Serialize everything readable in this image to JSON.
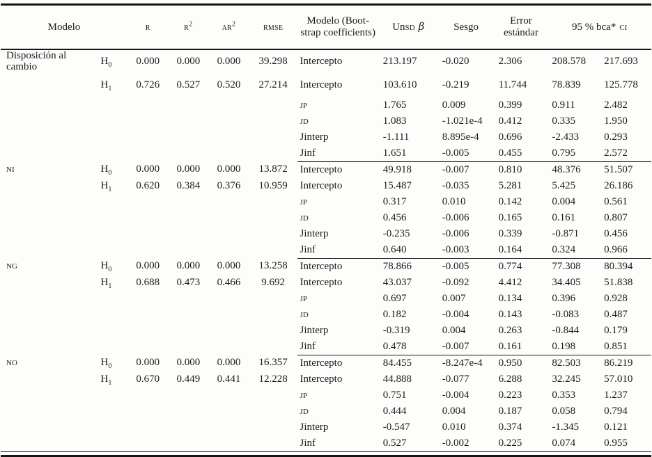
{
  "table": {
    "header": {
      "modelo": "Modelo",
      "r": "R",
      "r2_base": "R",
      "ar2_base": "AR",
      "sup2": "2",
      "rmse": "RMSE",
      "bootstrap": "Modelo (Boot­strap coeffi­cients)",
      "unsd_prefix": "Un",
      "unsd_small": "SD",
      "unsd_beta": "β",
      "sesgo": "Sesgo",
      "error": "Error estándar",
      "ci_prefix": "95 % bca*",
      "ci_small": "CI"
    },
    "blocks": [
      {
        "label": "Disposición al cambio",
        "label_sc": false,
        "rows": [
          {
            "h_base": "H",
            "h_sub": "0",
            "r": "0.000",
            "r2": "0.000",
            "ar2": "0.000",
            "rmse": "39.298",
            "name": "Intercepto",
            "name_sc": false,
            "unsd": "213.197",
            "sesgo": "-0.020",
            "se": "2.306",
            "ci_lo": "208.578",
            "ci_hi": "217.693"
          },
          {
            "h_base": "H",
            "h_sub": "1",
            "r": "0.726",
            "r2": "0.527",
            "ar2": "0.520",
            "rmse": "27.214",
            "name": "Intercepto",
            "name_sc": false,
            "unsd": "103.610",
            "sesgo": "-0.219",
            "se": "11.744",
            "ci_lo": "78.839",
            "ci_hi": "125.778"
          },
          {
            "name": "JP",
            "name_sc": true,
            "unsd": "1.765",
            "sesgo": "0.009",
            "se": "0.399",
            "ci_lo": "0.911",
            "ci_hi": "2.482"
          },
          {
            "name": "JD",
            "name_sc": true,
            "unsd": "1.083",
            "sesgo": "-1.021e-4",
            "se": "0.412",
            "ci_lo": "0.335",
            "ci_hi": "1.950"
          },
          {
            "name": "Jinterp",
            "name_sc": false,
            "unsd": "-1.111",
            "sesgo": "8.895e-4",
            "se": "0.696",
            "ci_lo": "-2.433",
            "ci_hi": "0.293"
          },
          {
            "name": "Jinf",
            "name_sc": false,
            "unsd": "1.651",
            "sesgo": "-0.005",
            "se": "0.455",
            "ci_lo": "0.795",
            "ci_hi": "2.572"
          }
        ]
      },
      {
        "label": "NI",
        "label_sc": true,
        "rows": [
          {
            "h_base": "H",
            "h_sub": "0",
            "r": "0.000",
            "r2": "0.000",
            "ar2": "0.000",
            "rmse": "13.872",
            "name": "Intercepto",
            "name_sc": false,
            "unsd": "49.918",
            "sesgo": "-0.007",
            "se": "0.810",
            "ci_lo": "48.376",
            "ci_hi": "51.507"
          },
          {
            "h_base": "H",
            "h_sub": "1",
            "r": "0.620",
            "r2": "0.384",
            "ar2": "0.376",
            "rmse": "10.959",
            "name": "Intercepto",
            "name_sc": false,
            "unsd": "15.487",
            "sesgo": "-0.035",
            "se": "5.281",
            "ci_lo": "5.425",
            "ci_hi": "26.186"
          },
          {
            "name": "JP",
            "name_sc": true,
            "unsd": "0.317",
            "sesgo": "0.010",
            "se": "0.142",
            "ci_lo": "0.004",
            "ci_hi": "0.561"
          },
          {
            "name": "JD",
            "name_sc": true,
            "unsd": "0.456",
            "sesgo": "-0.006",
            "se": "0.165",
            "ci_lo": "0.161",
            "ci_hi": "0.807"
          },
          {
            "name": "Jinterp",
            "name_sc": false,
            "unsd": "-0.235",
            "sesgo": "-0.006",
            "se": "0.339",
            "ci_lo": "-0.871",
            "ci_hi": "0.456"
          },
          {
            "name": "Jinf",
            "name_sc": false,
            "unsd": "0.640",
            "sesgo": "-0.003",
            "se": "0.164",
            "ci_lo": "0.324",
            "ci_hi": "0.966"
          }
        ]
      },
      {
        "label": "NG",
        "label_sc": true,
        "rows": [
          {
            "h_base": "H",
            "h_sub": "0",
            "r": "0.000",
            "r2": "0.000",
            "ar2": "0.000",
            "rmse": "13.258",
            "name": "Intercepto",
            "name_sc": false,
            "unsd": "78.866",
            "sesgo": "-0.005",
            "se": "0.774",
            "ci_lo": "77.308",
            "ci_hi": "80.394"
          },
          {
            "h_base": "H",
            "h_sub": "1",
            "r": "0.688",
            "r2": "0.473",
            "ar2": "0.466",
            "rmse": "9.692",
            "name": "Intercepto",
            "name_sc": false,
            "unsd": "43.037",
            "sesgo": "-0.092",
            "se": "4.412",
            "ci_lo": "34.405",
            "ci_hi": "51.838"
          },
          {
            "name": "JP",
            "name_sc": true,
            "unsd": "0.697",
            "sesgo": "0.007",
            "se": "0.134",
            "ci_lo": "0.396",
            "ci_hi": "0.928"
          },
          {
            "name": "JD",
            "name_sc": true,
            "unsd": "0.182",
            "sesgo": "-0.004",
            "se": "0.143",
            "ci_lo": "-0.083",
            "ci_hi": "0.487"
          },
          {
            "name": "Jinterp",
            "name_sc": false,
            "unsd": "-0.319",
            "sesgo": "0.004",
            "se": "0.263",
            "ci_lo": "-0.844",
            "ci_hi": "0.179"
          },
          {
            "name": "Jinf",
            "name_sc": false,
            "unsd": "0.478",
            "sesgo": "-0.007",
            "se": "0.161",
            "ci_lo": "0.198",
            "ci_hi": "0.851"
          }
        ]
      },
      {
        "label": "NO",
        "label_sc": true,
        "rows": [
          {
            "h_base": "H",
            "h_sub": "0",
            "r": "0.000",
            "r2": "0.000",
            "ar2": "0.000",
            "rmse": "16.357",
            "name": "Intercepto",
            "name_sc": false,
            "unsd": "84.455",
            "sesgo": "-8.247e-4",
            "se": "0.950",
            "ci_lo": "82.503",
            "ci_hi": "86.219"
          },
          {
            "h_base": "H",
            "h_sub": "1",
            "r": "0.670",
            "r2": "0.449",
            "ar2": "0.441",
            "rmse": "12.228",
            "name": "Intercepto",
            "name_sc": false,
            "unsd": "44.888",
            "sesgo": "-0.077",
            "se": "6.288",
            "ci_lo": "32.245",
            "ci_hi": "57.010"
          },
          {
            "name": "JP",
            "name_sc": true,
            "unsd": "0.751",
            "sesgo": "-0.004",
            "se": "0.223",
            "ci_lo": "0.353",
            "ci_hi": "1.237"
          },
          {
            "name": "JD",
            "name_sc": true,
            "unsd": "0.444",
            "sesgo": "0.004",
            "se": "0.187",
            "ci_lo": "0.058",
            "ci_hi": "0.794"
          },
          {
            "name": "Jinterp",
            "name_sc": false,
            "unsd": "-0.547",
            "sesgo": "0.010",
            "se": "0.374",
            "ci_lo": "-1.345",
            "ci_hi": "0.121"
          },
          {
            "name": "Jinf",
            "name_sc": false,
            "unsd": "0.527",
            "sesgo": "-0.002",
            "se": "0.225",
            "ci_lo": "0.074",
            "ci_hi": "0.955"
          }
        ]
      }
    ]
  }
}
